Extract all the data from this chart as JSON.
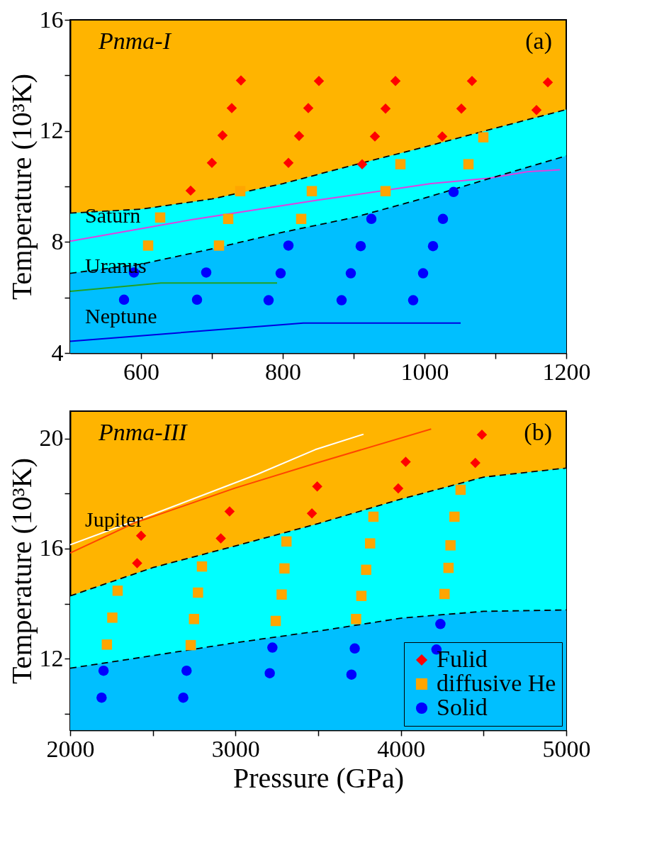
{
  "chart_data": [
    {
      "type": "scatter",
      "ylabel": "Temperature (10³K)",
      "annotations": [
        "Pnma-I",
        "(a)"
      ],
      "xlim": [
        500,
        1200
      ],
      "ylim": [
        4,
        16
      ],
      "xticks": [
        600,
        {
          "value": 700,
          "label": null
        },
        800,
        {
          "value": 900,
          "label": null
        },
        1000,
        {
          "value": 1100,
          "label": null
        },
        1200
      ],
      "yticks": [
        4,
        {
          "value": 6,
          "label": null
        },
        8,
        {
          "value": 10,
          "label": null
        },
        12,
        {
          "value": 14,
          "label": null
        },
        16
      ],
      "grid": false,
      "legend": false,
      "series": [
        {
          "type": "area",
          "color": "#00ffff",
          "line_style": "dashed",
          "x": [
            500,
            600,
            700,
            800,
            900,
            1000,
            1100,
            1200
          ],
          "values": [
            9.04,
            9.18,
            9.55,
            10.1,
            10.77,
            11.42,
            12.1,
            12.77
          ]
        },
        {
          "type": "area",
          "color": "#00bfff",
          "line_style": "dashed",
          "x": [
            500,
            600,
            700,
            800,
            900,
            1000,
            1100,
            1200
          ],
          "values": [
            6.87,
            7.2,
            7.75,
            8.35,
            8.88,
            9.58,
            10.35,
            11.1
          ]
        },
        {
          "type": "line",
          "name": "Saturn",
          "color": "#e040e0",
          "x": [
            500,
            671,
            848,
            1009,
            1092,
            1145,
            1191
          ],
          "values": [
            8.03,
            8.8,
            9.5,
            10.1,
            10.3,
            10.53,
            10.6
          ]
        },
        {
          "type": "line",
          "name": "Uranus",
          "color": "#22a022",
          "x": [
            500,
            628,
            792
          ],
          "values": [
            6.22,
            6.52,
            6.52
          ]
        },
        {
          "type": "line",
          "name": "Neptune",
          "color": "#0000e0",
          "x": [
            500,
            829,
            1051
          ],
          "values": [
            4.42,
            5.08,
            5.08
          ]
        },
        {
          "type": "scatter",
          "marker": "diamond",
          "color": "#ff0000",
          "x": [
            670,
            700,
            715,
            728,
            741,
            808,
            823,
            836,
            851,
            912,
            930,
            945,
            959,
            1025,
            1052,
            1067,
            1158,
            1174
          ],
          "values": [
            9.85,
            10.85,
            11.84,
            12.82,
            13.82,
            10.85,
            11.82,
            12.82,
            13.8,
            10.8,
            11.8,
            12.8,
            13.8,
            11.8,
            12.8,
            13.8,
            12.75,
            13.75
          ]
        },
        {
          "type": "scatter",
          "marker": "square",
          "color": "#ffa500",
          "x": [
            610,
            627,
            740,
            710,
            723,
            826,
            841,
            945,
            966,
            1062,
            1083
          ],
          "values": [
            7.87,
            8.88,
            9.83,
            7.87,
            8.83,
            8.83,
            9.83,
            9.83,
            10.8,
            10.8,
            11.77
          ]
        },
        {
          "type": "scatter",
          "marker": "circle",
          "color": "#0000ff",
          "x": [
            576,
            590,
            679,
            692,
            780,
            797,
            808,
            883,
            896,
            910,
            925,
            984,
            998,
            1012,
            1026,
            1041
          ],
          "values": [
            5.92,
            6.9,
            5.92,
            6.9,
            5.9,
            6.87,
            7.87,
            5.9,
            6.87,
            7.85,
            8.83,
            5.9,
            6.87,
            7.85,
            8.83,
            9.8
          ]
        }
      ]
    },
    {
      "type": "scatter",
      "xlabel": "Pressure (GPa)",
      "ylabel": "Temperature (10³K)",
      "annotations": [
        "Pnma-III",
        "(b)"
      ],
      "xlim": [
        2000,
        5000
      ],
      "ylim": [
        9.4,
        21
      ],
      "xticks": [
        2000,
        {
          "value": 2500,
          "label": null
        },
        3000,
        {
          "value": 3500,
          "label": null
        },
        4000,
        {
          "value": 4500,
          "label": null
        },
        5000
      ],
      "yticks": [
        {
          "value": 10,
          "label": null
        },
        12,
        {
          "value": 14,
          "label": null
        },
        16,
        {
          "value": 18,
          "label": null
        },
        20
      ],
      "grid": false,
      "legend": "bottom right",
      "series": [
        {
          "type": "area",
          "color": "#00ffff",
          "line_style": "dashed",
          "x": [
            2000,
            2500,
            3000,
            3500,
            4000,
            4500,
            5000
          ],
          "values": [
            14.28,
            15.31,
            16.1,
            16.91,
            17.8,
            18.6,
            18.93
          ]
        },
        {
          "type": "area",
          "color": "#00bfff",
          "line_style": "dashed",
          "x": [
            2000,
            2500,
            3000,
            3500,
            4000,
            4500,
            5000
          ],
          "values": [
            11.65,
            12.11,
            12.58,
            13.0,
            13.47,
            13.72,
            13.77
          ]
        },
        {
          "type": "line",
          "name": "Jupiter",
          "color": "#ffffff",
          "x": [
            2000,
            2522,
            3130,
            3482,
            3774
          ],
          "values": [
            16.14,
            17.3,
            18.7,
            19.6,
            20.16
          ]
        },
        {
          "type": "line",
          "color": "#ff4500",
          "x": [
            2000,
            2388,
            2996,
            3482,
            4183
          ],
          "values": [
            15.84,
            16.93,
            18.2,
            19.1,
            20.35
          ]
        },
        {
          "type": "scatter",
          "name": "Fulid",
          "marker": "diamond",
          "color": "#ff0000",
          "x": [
            2405,
            2429,
            2911,
            2964,
            3462,
            3494,
            3984,
            4029,
            4450,
            4490
          ],
          "values": [
            15.47,
            16.47,
            16.37,
            17.35,
            17.28,
            18.26,
            18.19,
            19.16,
            19.12,
            20.14
          ]
        },
        {
          "type": "scatter",
          "name": "diffusive He",
          "marker": "square",
          "color": "#ffa500",
          "x": [
            2222,
            2255,
            2287,
            2729,
            2749,
            2773,
            2797,
            3243,
            3279,
            3296,
            3308,
            3729,
            3761,
            3790,
            3814,
            3834,
            4264,
            4288,
            4300,
            4324,
            4361
          ],
          "values": [
            12.51,
            13.49,
            14.47,
            12.49,
            13.44,
            14.4,
            15.35,
            13.37,
            14.33,
            15.28,
            16.26,
            13.44,
            14.28,
            15.23,
            16.19,
            17.16,
            14.35,
            15.3,
            16.12,
            17.16,
            18.14
          ]
        },
        {
          "type": "scatter",
          "name": "Solid",
          "marker": "circle",
          "color": "#0000ff",
          "x": [
            2190,
            2202,
            2684,
            2704,
            3207,
            3223,
            3701,
            3721,
            4215,
            4239
          ],
          "values": [
            10.58,
            11.56,
            10.58,
            11.56,
            11.47,
            12.4,
            11.42,
            12.37,
            12.33,
            13.26
          ]
        }
      ]
    }
  ]
}
